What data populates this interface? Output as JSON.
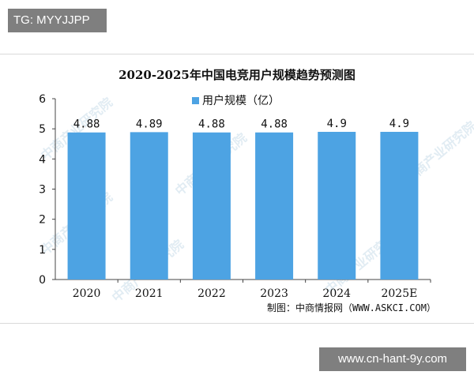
{
  "top_tag": "TG: MYYJJPP",
  "footer_tag": "www.cn-hant-9y.com",
  "source_note": "制图：中商情报网（WWW.ASKCI.COM）",
  "watermark_text": "中商产业研究院",
  "colors": {
    "bar": "#4da3e3",
    "axis": "#444444"
  },
  "chart_data": {
    "type": "bar",
    "title": "2020-2025年中国电竞用户规模趋势预测图",
    "legend": "用户规模（亿）",
    "categories": [
      "2020",
      "2021",
      "2022",
      "2023",
      "2024",
      "2025E"
    ],
    "values": [
      4.88,
      4.89,
      4.88,
      4.88,
      4.9,
      4.9
    ],
    "value_labels": [
      "4.88",
      "4.89",
      "4.88",
      "4.88",
      "4.9",
      "4.9"
    ],
    "ylim": [
      0,
      6
    ],
    "yticks": [
      0,
      1,
      2,
      3,
      4,
      5,
      6
    ],
    "xlabel": "",
    "ylabel": "",
    "grid": false,
    "legend_position": "top-center"
  }
}
